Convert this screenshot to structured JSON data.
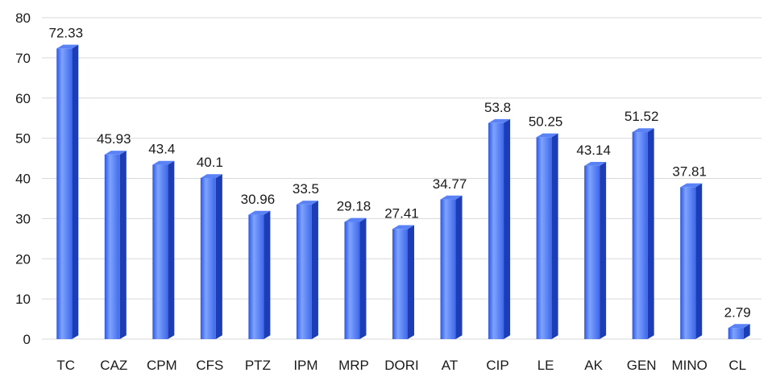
{
  "chart_data": {
    "type": "bar",
    "title": "",
    "xlabel": "",
    "ylabel": "",
    "ylim": [
      0,
      80
    ],
    "yticks": [
      0,
      10,
      20,
      30,
      40,
      50,
      60,
      70,
      80
    ],
    "grid": true,
    "legend": "none",
    "categories": [
      "TC",
      "CAZ",
      "CPM",
      "CFS",
      "PTZ",
      "IPM",
      "MRP",
      "DORI",
      "AT",
      "CIP",
      "LE",
      "AK",
      "GEN",
      "MINO",
      "CL"
    ],
    "values": [
      72.33,
      45.93,
      43.4,
      40.1,
      30.96,
      33.5,
      29.18,
      27.41,
      34.77,
      53.8,
      50.25,
      43.14,
      51.52,
      37.81,
      2.79
    ],
    "value_labels": [
      "72.33",
      "45.93",
      "43.4",
      "40.1",
      "30.96",
      "33.5",
      "29.18",
      "27.41",
      "34.77",
      "53.8",
      "50.25",
      "43.14",
      "51.52",
      "37.81",
      "2.79"
    ],
    "colors": {
      "bar_front_light": "#7da2ff",
      "bar_front_mid": "#4a74f0",
      "bar_front_dark": "#2b52d8",
      "bar_side": "#1c3cb8",
      "bar_top": "#5a82f5",
      "grid": "#d9d9d9",
      "text": "#1a1a1a"
    }
  }
}
